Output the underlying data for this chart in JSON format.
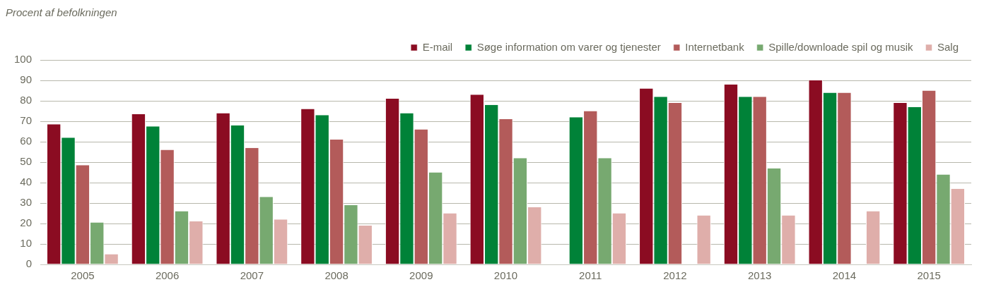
{
  "chart_data": {
    "type": "bar",
    "ylabel": "Procent af befolkningen",
    "categories": [
      "2005",
      "2006",
      "2007",
      "2008",
      "2009",
      "2010",
      "2011",
      "2012",
      "2013",
      "2014",
      "2015"
    ],
    "series": [
      {
        "name": "E-mail",
        "color": "#8b0c22",
        "values": [
          68.5,
          73.5,
          74,
          76,
          81,
          83,
          null,
          86,
          88,
          90,
          79
        ]
      },
      {
        "name": "Søge information om varer og tjenester",
        "color": "#008238",
        "values": [
          62,
          67.5,
          68,
          73,
          74,
          78,
          72,
          82,
          82,
          84,
          77
        ]
      },
      {
        "name": "Internetbank",
        "color": "#b35b5a",
        "values": [
          48.5,
          56,
          57,
          61,
          66,
          71,
          75,
          79,
          82,
          84,
          85
        ]
      },
      {
        "name": "Spille/downloade spil og musik",
        "color": "#77a970",
        "values": [
          20.5,
          26,
          33,
          29,
          45,
          52,
          52,
          null,
          47,
          null,
          44
        ]
      },
      {
        "name": "Salg",
        "color": "#dfaeaa",
        "values": [
          5,
          21,
          22,
          19,
          25,
          28,
          25,
          24,
          24,
          26,
          37
        ]
      }
    ],
    "ylim": [
      0,
      100
    ],
    "yticks": [
      0,
      10,
      20,
      30,
      40,
      50,
      60,
      70,
      80,
      90,
      100
    ],
    "grid": "y",
    "legend": "top right"
  }
}
